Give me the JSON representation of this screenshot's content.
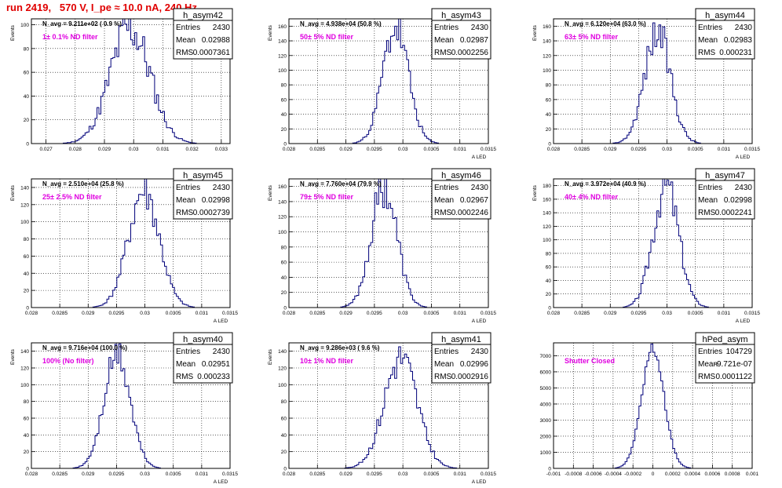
{
  "title": "run 2419,   570 V, I_pe ≈ 10.0 nA, 240 Hz",
  "colors": {
    "title": "#e00000",
    "histogram": "#00007a",
    "annotation": "#e000e0",
    "grid": "#000000"
  },
  "chart_data": [
    {
      "type": "histogram",
      "name": "h_asym42",
      "stats": {
        "entries_label": "Entries",
        "entries": "2430",
        "mean_label": "Mean",
        "mean": "0.02988",
        "rms_label": "RMS",
        "rms": "0.0007361"
      },
      "navg": "N_avg = 9.211e+02 ( 0.9 %)",
      "annotation": "1± 0.1% ND filter",
      "ylabel": "Events",
      "xlabel": "",
      "xlim": [
        0.0265,
        0.0333
      ],
      "ylim": [
        0,
        105
      ],
      "xticks": [
        0.027,
        0.028,
        0.029,
        0.03,
        0.031,
        0.032,
        0.033
      ],
      "xtick_labels": [
        "0.027",
        "0.028",
        "0.029",
        "0.03",
        "0.031",
        "0.032",
        "0.033"
      ],
      "yticks": [
        0,
        20,
        40,
        60,
        80,
        100
      ],
      "ytick_labels": [
        "0",
        "20",
        "40",
        "60",
        "80",
        "100"
      ],
      "peak": 97,
      "grid": true
    },
    {
      "type": "histogram",
      "name": "h_asym43",
      "stats": {
        "entries_label": "Entries",
        "entries": "2430",
        "mean_label": "Mean",
        "mean": "0.02987",
        "rms_label": "RMS",
        "rms": "0.0002256"
      },
      "navg": "N_avg = 4.938e+04 (50.8 %)",
      "annotation": "50± 5% ND filter",
      "ylabel": "Events",
      "xlabel": "A_LED",
      "xlim": [
        0.028,
        0.0315
      ],
      "ylim": [
        0,
        170
      ],
      "xticks": [
        0.028,
        0.0285,
        0.029,
        0.0295,
        0.03,
        0.0305,
        0.031,
        0.0315
      ],
      "xtick_labels": [
        "0.028",
        "0.0285",
        "0.029",
        "0.0295",
        "0.03",
        "0.0305",
        "0.031",
        "0.0315"
      ],
      "yticks": [
        0,
        20,
        40,
        60,
        80,
        100,
        120,
        140,
        160
      ],
      "ytick_labels": [
        "0",
        "20",
        "40",
        "60",
        "80",
        "100",
        "120",
        "140",
        "160"
      ],
      "peak": 158,
      "grid": true
    },
    {
      "type": "histogram",
      "name": "h_asym44",
      "stats": {
        "entries_label": "Entries",
        "entries": "2430",
        "mean_label": "Mean",
        "mean": "0.02983",
        "rms_label": "RMS",
        "rms": "0.000231"
      },
      "navg": "N_avg = 6.120e+04 (63.0 %)",
      "annotation": "63± 5% ND filter",
      "ylabel": "Events",
      "xlabel": "A_LED",
      "xlim": [
        0.028,
        0.0315
      ],
      "ylim": [
        0,
        170
      ],
      "xticks": [
        0.028,
        0.0285,
        0.029,
        0.0295,
        0.03,
        0.0305,
        0.031,
        0.0315
      ],
      "xtick_labels": [
        "0.028",
        "0.0285",
        "0.029",
        "0.0295",
        "0.03",
        "0.0305",
        "0.031",
        "0.0315"
      ],
      "yticks": [
        0,
        20,
        40,
        60,
        80,
        100,
        120,
        140,
        160
      ],
      "ytick_labels": [
        "0",
        "20",
        "40",
        "60",
        "80",
        "100",
        "120",
        "140",
        "160"
      ],
      "peak": 152,
      "grid": true
    },
    {
      "type": "histogram",
      "name": "h_asym45",
      "stats": {
        "entries_label": "Entries",
        "entries": "2430",
        "mean_label": "Mean",
        "mean": "0.02998",
        "rms_label": "RMS",
        "rms": "0.0002739"
      },
      "navg": "N_avg = 2.510e+04 (25.8 %)",
      "annotation": "25± 2.5% ND filter",
      "ylabel": "Events",
      "xlabel": "A_LED",
      "xlim": [
        0.028,
        0.0315
      ],
      "ylim": [
        0,
        150
      ],
      "xticks": [
        0.028,
        0.0285,
        0.029,
        0.0295,
        0.03,
        0.0305,
        0.031,
        0.0315
      ],
      "xtick_labels": [
        "0.028",
        "0.0285",
        "0.029",
        "0.0295",
        "0.03",
        "0.0305",
        "0.031",
        "0.0315"
      ],
      "yticks": [
        0,
        20,
        40,
        60,
        80,
        100,
        120,
        140
      ],
      "ytick_labels": [
        "0",
        "20",
        "40",
        "60",
        "80",
        "100",
        "120",
        "140"
      ],
      "peak": 135,
      "grid": true
    },
    {
      "type": "histogram",
      "name": "h_asym46",
      "stats": {
        "entries_label": "Entries",
        "entries": "2430",
        "mean_label": "Mean",
        "mean": "0.02967",
        "rms_label": "RMS",
        "rms": "0.0002246"
      },
      "navg": "N_avg = 7.760e+04 (79.9 %)",
      "annotation": "79± 5% ND filter",
      "ylabel": "Events",
      "xlabel": "A_LED",
      "xlim": [
        0.028,
        0.0315
      ],
      "ylim": [
        0,
        170
      ],
      "xticks": [
        0.028,
        0.0285,
        0.029,
        0.0295,
        0.03,
        0.0305,
        0.031,
        0.0315
      ],
      "xtick_labels": [
        "0.028",
        "0.0285",
        "0.029",
        "0.0295",
        "0.03",
        "0.0305",
        "0.031",
        "0.0315"
      ],
      "yticks": [
        0,
        20,
        40,
        60,
        80,
        100,
        120,
        140,
        160
      ],
      "ytick_labels": [
        "0",
        "20",
        "40",
        "60",
        "80",
        "100",
        "120",
        "140",
        "160"
      ],
      "peak": 160,
      "grid": true
    },
    {
      "type": "histogram",
      "name": "h_asym47",
      "stats": {
        "entries_label": "Entries",
        "entries": "2430",
        "mean_label": "Mean",
        "mean": "0.02998",
        "rms_label": "RMS",
        "rms": "0.0002241"
      },
      "navg": "N_avg = 3.972e+04 (40.9 %)",
      "annotation": "40± 4% ND filter",
      "ylabel": "Events",
      "xlabel": "A_LED",
      "xlim": [
        0.028,
        0.0315
      ],
      "ylim": [
        0,
        190
      ],
      "xticks": [
        0.028,
        0.0285,
        0.029,
        0.0295,
        0.03,
        0.0305,
        0.031,
        0.0315
      ],
      "xtick_labels": [
        "0.028",
        "0.0285",
        "0.029",
        "0.0295",
        "0.03",
        "0.0305",
        "0.031",
        "0.0315"
      ],
      "yticks": [
        0,
        20,
        40,
        60,
        80,
        100,
        120,
        140,
        160,
        180
      ],
      "ytick_labels": [
        "0",
        "20",
        "40",
        "60",
        "80",
        "100",
        "120",
        "140",
        "160",
        "180"
      ],
      "peak": 182,
      "grid": true
    },
    {
      "type": "histogram",
      "name": "h_asym40",
      "stats": {
        "entries_label": "Entries",
        "entries": "2430",
        "mean_label": "Mean",
        "mean": "0.02951",
        "rms_label": "RMS",
        "rms": "0.000233"
      },
      "navg": "N_avg = 9.716e+04 (100.0 %)",
      "annotation": "100% (No filter)",
      "ylabel": "Events",
      "xlabel": "A_LED",
      "xlim": [
        0.028,
        0.0315
      ],
      "ylim": [
        0,
        150
      ],
      "xticks": [
        0.028,
        0.0285,
        0.029,
        0.0295,
        0.03,
        0.0305,
        0.031,
        0.0315
      ],
      "xtick_labels": [
        "0.028",
        "0.0285",
        "0.029",
        "0.0295",
        "0.03",
        "0.0305",
        "0.031",
        "0.0315"
      ],
      "yticks": [
        0,
        20,
        40,
        60,
        80,
        100,
        120,
        140
      ],
      "ytick_labels": [
        "0",
        "20",
        "40",
        "60",
        "80",
        "100",
        "120",
        "140"
      ],
      "peak": 135,
      "grid": true
    },
    {
      "type": "histogram",
      "name": "h_asym41",
      "stats": {
        "entries_label": "Entries",
        "entries": "2430",
        "mean_label": "Mean",
        "mean": "0.02996",
        "rms_label": "RMS",
        "rms": "0.0002916"
      },
      "navg": "N_avg = 9.286e+03 ( 9.6 %)",
      "annotation": "10± 1% ND filter",
      "ylabel": "Events",
      "xlabel": "A_LED",
      "xlim": [
        0.028,
        0.0315
      ],
      "ylim": [
        0,
        150
      ],
      "xticks": [
        0.028,
        0.0285,
        0.029,
        0.0295,
        0.03,
        0.0305,
        0.031,
        0.0315
      ],
      "xtick_labels": [
        "0.028",
        "0.0285",
        "0.029",
        "0.0295",
        "0.03",
        "0.0305",
        "0.031",
        "0.0315"
      ],
      "yticks": [
        0,
        20,
        40,
        60,
        80,
        100,
        120,
        140
      ],
      "ytick_labels": [
        "0",
        "20",
        "40",
        "60",
        "80",
        "100",
        "120",
        "140"
      ],
      "peak": 132,
      "grid": true
    },
    {
      "type": "histogram",
      "name": "hPed_asym",
      "stats": {
        "entries_label": "Entries",
        "entries": "104729",
        "mean_label": "Mean",
        "mean": "-9.721e-07",
        "rms_label": "RMS",
        "rms": "0.0001122"
      },
      "navg": "",
      "annotation": "Shutter Closed",
      "ylabel": "",
      "xlabel": "",
      "xlim": [
        -0.001,
        0.001
      ],
      "ylim": [
        0,
        7800
      ],
      "xticks": [
        -0.001,
        -0.0008,
        -0.0006,
        -0.0004,
        -0.0002,
        0,
        0.0002,
        0.0004,
        0.0006,
        0.0008,
        0.001
      ],
      "xtick_labels": [
        "-0.001",
        "-0.0008",
        "-0.0006",
        "-0.0004",
        "-0.0002",
        "0",
        "0.0002",
        "0.0004",
        "0.0006",
        "0.0008",
        "0.001"
      ],
      "yticks": [
        0,
        1000,
        2000,
        3000,
        4000,
        5000,
        6000,
        7000
      ],
      "ytick_labels": [
        "0",
        "1000",
        "2000",
        "3000",
        "4000",
        "5000",
        "6000",
        "7000"
      ],
      "peak": 7450,
      "grid": true
    }
  ]
}
